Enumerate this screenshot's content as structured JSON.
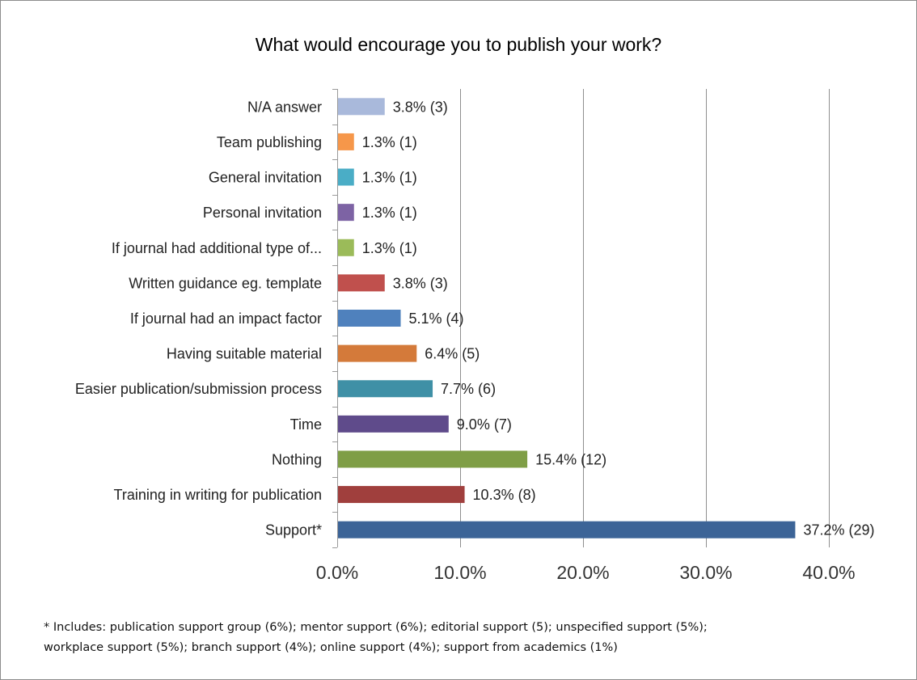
{
  "chart_data": {
    "type": "bar",
    "orientation": "horizontal",
    "title": "What would encourage you to publish your work?",
    "categories": [
      "N/A answer",
      "Team publishing",
      "General invitation",
      "Personal invitation",
      "If journal had additional type of...",
      "Written guidance eg. template",
      "If journal had an impact factor",
      "Having suitable material",
      "Easier publication/submission process",
      "Time",
      "Nothing",
      "Training in writing for publication",
      "Support*"
    ],
    "values": [
      3.8,
      1.3,
      1.3,
      1.3,
      1.3,
      3.8,
      5.1,
      6.4,
      7.7,
      9.0,
      15.4,
      10.3,
      37.2
    ],
    "data_labels": [
      "3.8% (3)",
      "1.3% (1)",
      "1.3% (1)",
      "1.3% (1)",
      "1.3% (1)",
      "3.8% (3)",
      "5.1% (4)",
      "6.4% (5)",
      "7.7% (6)",
      "9.0% (7)",
      "15.4% (12)",
      "10.3% (8)",
      "37.2% (29)"
    ],
    "colors": [
      "#a9b9db",
      "#f6974a",
      "#4aadc6",
      "#7d63a4",
      "#9bbb59",
      "#c0504d",
      "#4f81bd",
      "#d47a3a",
      "#3f90a6",
      "#5f4b8b",
      "#7f9e46",
      "#a03f3d",
      "#3c6497"
    ],
    "xlim": [
      0,
      40
    ],
    "xticks": [
      0,
      10,
      20,
      30,
      40
    ],
    "xtick_labels": [
      "0.0%",
      "10.0%",
      "20.0%",
      "30.0%",
      "40.0%"
    ],
    "grid": "vertical",
    "legend": "none"
  },
  "footnote": {
    "marker": "*",
    "line1": " Includes: publication support group (6%); mentor support (6%); editorial support (5); unspecified support (5%);",
    "line2": "workplace support (5%); branch support (4%); online support (4%); support from academics (1%)"
  }
}
